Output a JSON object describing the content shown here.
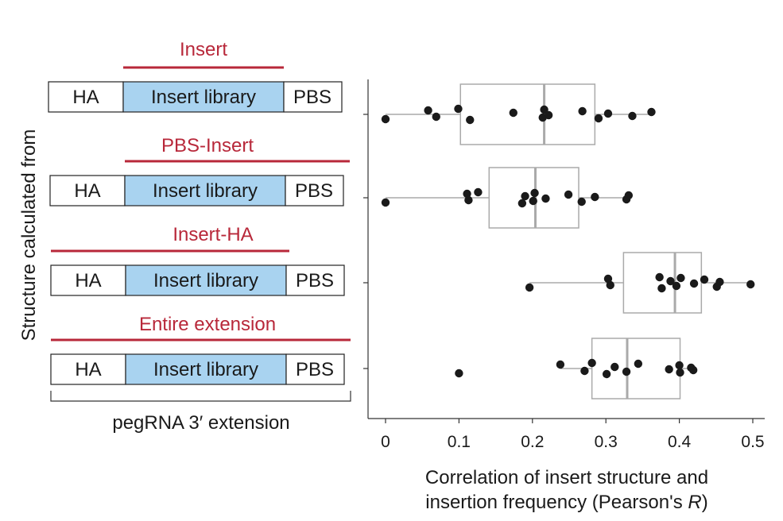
{
  "colors": {
    "accent": "#b8283a",
    "library_fill": "#a9d3f0",
    "box_stroke": "#aaaaaa",
    "median": "#aaaaaa",
    "point": "#1a1a1a",
    "axis": "#333333"
  },
  "diagram": {
    "rows": [
      {
        "region": "Insert",
        "segments": [
          "HA",
          "Insert library",
          "PBS"
        ]
      },
      {
        "region": "PBS-Insert",
        "segments": [
          "HA",
          "Insert library",
          "PBS"
        ]
      },
      {
        "region": "Insert-HA",
        "segments": [
          "HA",
          "Insert library",
          "PBS"
        ]
      },
      {
        "region": "Entire extension",
        "segments": [
          "HA",
          "Insert library",
          "PBS"
        ]
      }
    ],
    "bracket_label": "pegRNA 3′ extension",
    "y_axis_label": "Structure calculated from"
  },
  "chart_data": {
    "type": "box",
    "orientation": "horizontal",
    "xlabel_line1": "Correlation of insert structure and",
    "xlabel_line2_prefix": "insertion frequency (Pearson's ",
    "xlabel_line2_italic": "R",
    "xlabel_line2_suffix": ")",
    "xlim": [
      -0.025,
      0.51
    ],
    "xticks": [
      0,
      0.1,
      0.2,
      0.3,
      0.4,
      0.5
    ],
    "xtick_labels": [
      "0",
      "0.1",
      "0.2",
      "0.3",
      "0.4",
      "0.5"
    ],
    "series": [
      {
        "category": "Insert",
        "whisker_low": 0.0,
        "q1": 0.102,
        "median": 0.216,
        "q3": 0.285,
        "whisker_high": 0.362,
        "points": [
          0.0,
          0.058,
          0.069,
          0.099,
          0.115,
          0.174,
          0.214,
          0.216,
          0.222,
          0.268,
          0.29,
          0.303,
          0.336,
          0.362
        ]
      },
      {
        "category": "PBS-Insert",
        "whisker_low": 0.0,
        "q1": 0.141,
        "median": 0.204,
        "q3": 0.263,
        "whisker_high": 0.331,
        "points": [
          0.0,
          0.111,
          0.113,
          0.126,
          0.186,
          0.19,
          0.201,
          0.203,
          0.218,
          0.249,
          0.267,
          0.285,
          0.328,
          0.331
        ]
      },
      {
        "category": "Insert-HA",
        "whisker_low": 0.196,
        "q1": 0.324,
        "median": 0.394,
        "q3": 0.43,
        "whisker_high": 0.497,
        "points": [
          0.196,
          0.303,
          0.306,
          0.373,
          0.376,
          0.388,
          0.396,
          0.402,
          0.42,
          0.434,
          0.451,
          0.455,
          0.497
        ]
      },
      {
        "category": "Entire extension",
        "whisker_low": 0.238,
        "q1": 0.281,
        "median": 0.329,
        "q3": 0.401,
        "whisker_high": 0.421,
        "points": [
          0.1,
          0.238,
          0.271,
          0.281,
          0.301,
          0.312,
          0.328,
          0.344,
          0.386,
          0.4,
          0.401,
          0.416,
          0.419
        ]
      }
    ]
  }
}
